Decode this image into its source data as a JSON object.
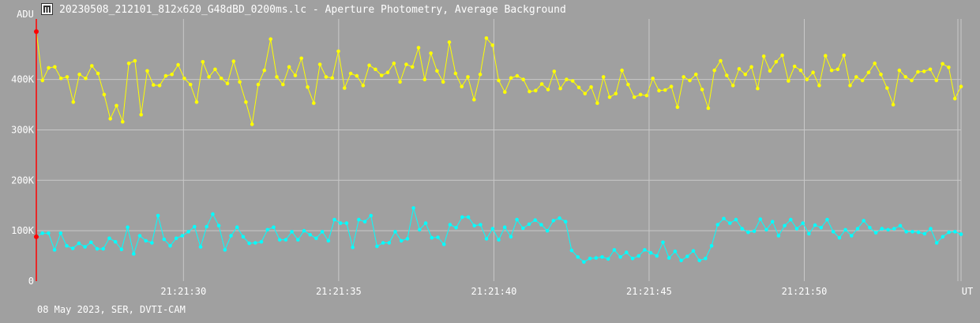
{
  "window": {
    "title": "20230508_212101_812x620_G48dBD_0200ms.lc - Aperture Photometry, Average Background"
  },
  "footer": {
    "text": "08 May 2023, SER, DVTI-CAM"
  },
  "colors": {
    "background": "#a0a0a0",
    "grid": "#c8c8c8",
    "target": "#ffff00",
    "comparison": "#00ffff",
    "cursor": "#ff0000",
    "text": "#ffffff"
  },
  "chart_data": {
    "type": "line",
    "ylabel": "ADU",
    "xlabel": "UT",
    "ylim": [
      0,
      520000
    ],
    "xlim": [
      "21:21:25.26",
      "21:21:55.05"
    ],
    "x_ticks": [
      "21:21:30",
      "21:21:35",
      "21:21:40",
      "21:21:45",
      "21:21:50"
    ],
    "y_ticks": [
      {
        "value": 0,
        "label": "0"
      },
      {
        "value": 100000,
        "label": "100K"
      },
      {
        "value": 200000,
        "label": "200K"
      },
      {
        "value": 300000,
        "label": "300K"
      },
      {
        "value": 400000,
        "label": "400K"
      }
    ],
    "grid": true,
    "series": [
      {
        "color": "#ffff00",
        "values": [
          495000,
          398000,
          423000,
          425000,
          402000,
          405000,
          355000,
          410000,
          402000,
          427000,
          412000,
          370000,
          322000,
          348000,
          316000,
          432000,
          437000,
          330000,
          417000,
          389000,
          388000,
          407000,
          410000,
          429000,
          402000,
          390000,
          355000,
          435000,
          405000,
          420000,
          402000,
          392000,
          436000,
          395000,
          355000,
          311000,
          390000,
          418000,
          480000,
          405000,
          390000,
          425000,
          408000,
          442000,
          385000,
          353000,
          430000,
          405000,
          403000,
          456000,
          383000,
          412000,
          407000,
          388000,
          428000,
          420000,
          408000,
          414000,
          432000,
          395000,
          430000,
          425000,
          463000,
          400000,
          452000,
          417000,
          395000,
          474000,
          412000,
          386000,
          405000,
          360000,
          410000,
          482000,
          468000,
          398000,
          375000,
          403000,
          407000,
          400000,
          376000,
          378000,
          391000,
          380000,
          416000,
          382000,
          400000,
          397000,
          384000,
          372000,
          385000,
          353000,
          405000,
          365000,
          372000,
          418000,
          390000,
          365000,
          370000,
          368000,
          402000,
          378000,
          379000,
          386000,
          345000,
          405000,
          398000,
          410000,
          380000,
          343000,
          418000,
          437000,
          408000,
          388000,
          421000,
          410000,
          425000,
          382000,
          446000,
          417000,
          435000,
          448000,
          397000,
          426000,
          418000,
          400000,
          414000,
          388000,
          447000,
          418000,
          420000,
          448000,
          388000,
          405000,
          398000,
          414000,
          432000,
          410000,
          383000,
          350000,
          418000,
          405000,
          398000,
          415000,
          416000,
          420000,
          398000,
          431000,
          424000,
          362000,
          386000
        ]
      },
      {
        "color": "#00ffff",
        "values": [
          88000,
          95000,
          95000,
          62000,
          95000,
          70000,
          65000,
          75000,
          68000,
          77000,
          64000,
          64000,
          85000,
          78000,
          63000,
          107000,
          54000,
          90000,
          80000,
          76000,
          130000,
          83000,
          70000,
          85000,
          90000,
          98000,
          108000,
          68000,
          108000,
          133000,
          110000,
          62000,
          90000,
          107000,
          88000,
          75000,
          76000,
          78000,
          102000,
          107000,
          82000,
          82000,
          98000,
          82000,
          100000,
          92000,
          85000,
          98000,
          80000,
          122000,
          115000,
          115000,
          67000,
          122000,
          118000,
          130000,
          69000,
          76000,
          76000,
          98000,
          80000,
          84000,
          145000,
          102000,
          115000,
          86000,
          87000,
          73000,
          112000,
          106000,
          127000,
          127000,
          110000,
          112000,
          84000,
          104000,
          82000,
          107000,
          88000,
          122000,
          105000,
          113000,
          121000,
          112000,
          100000,
          120000,
          125000,
          118000,
          61000,
          48000,
          38000,
          45000,
          46000,
          48000,
          44000,
          62000,
          48000,
          57000,
          45000,
          50000,
          62000,
          56000,
          50000,
          77000,
          46000,
          59000,
          41000,
          49000,
          60000,
          41000,
          45000,
          70000,
          112000,
          124000,
          115000,
          122000,
          104000,
          97000,
          99000,
          123000,
          102000,
          118000,
          90000,
          110000,
          122000,
          104000,
          115000,
          94000,
          111000,
          106000,
          122000,
          98000,
          86000,
          102000,
          90000,
          104000,
          120000,
          106000,
          96000,
          104000,
          102000,
          104000,
          110000,
          98000,
          98000,
          97000,
          94000,
          104000,
          76000,
          88000,
          97000,
          98000,
          93000
        ]
      }
    ]
  }
}
